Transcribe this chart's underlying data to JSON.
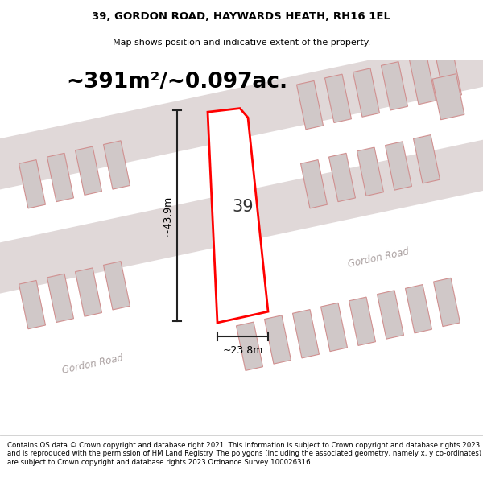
{
  "title_line1": "39, GORDON ROAD, HAYWARDS HEATH, RH16 1EL",
  "title_line2": "Map shows position and indicative extent of the property.",
  "area_text": "~391m²/~0.097ac.",
  "label_39": "39",
  "dim_vertical": "~43.9m",
  "dim_horizontal": "~23.8m",
  "gordon_road_label_lower": "Gordon Road",
  "gordon_road_label_upper": "Gordon Road",
  "footer_text": "Contains OS data © Crown copyright and database right 2021. This information is subject to Crown copyright and database rights 2023 and is reproduced with the permission of HM Land Registry. The polygons (including the associated geometry, namely x, y co-ordinates) are subject to Crown copyright and database rights 2023 Ordnance Survey 100026316.",
  "map_bg": "#f0eeee",
  "road_fill": "#e2dcdc",
  "building_fill": "#d8d2d2",
  "building_outline": "#e0b8b8",
  "property_outline": "#ff0000",
  "dim_line_color": "#222222",
  "road_label_color": "#aaa0a0",
  "number_color": "#333333"
}
